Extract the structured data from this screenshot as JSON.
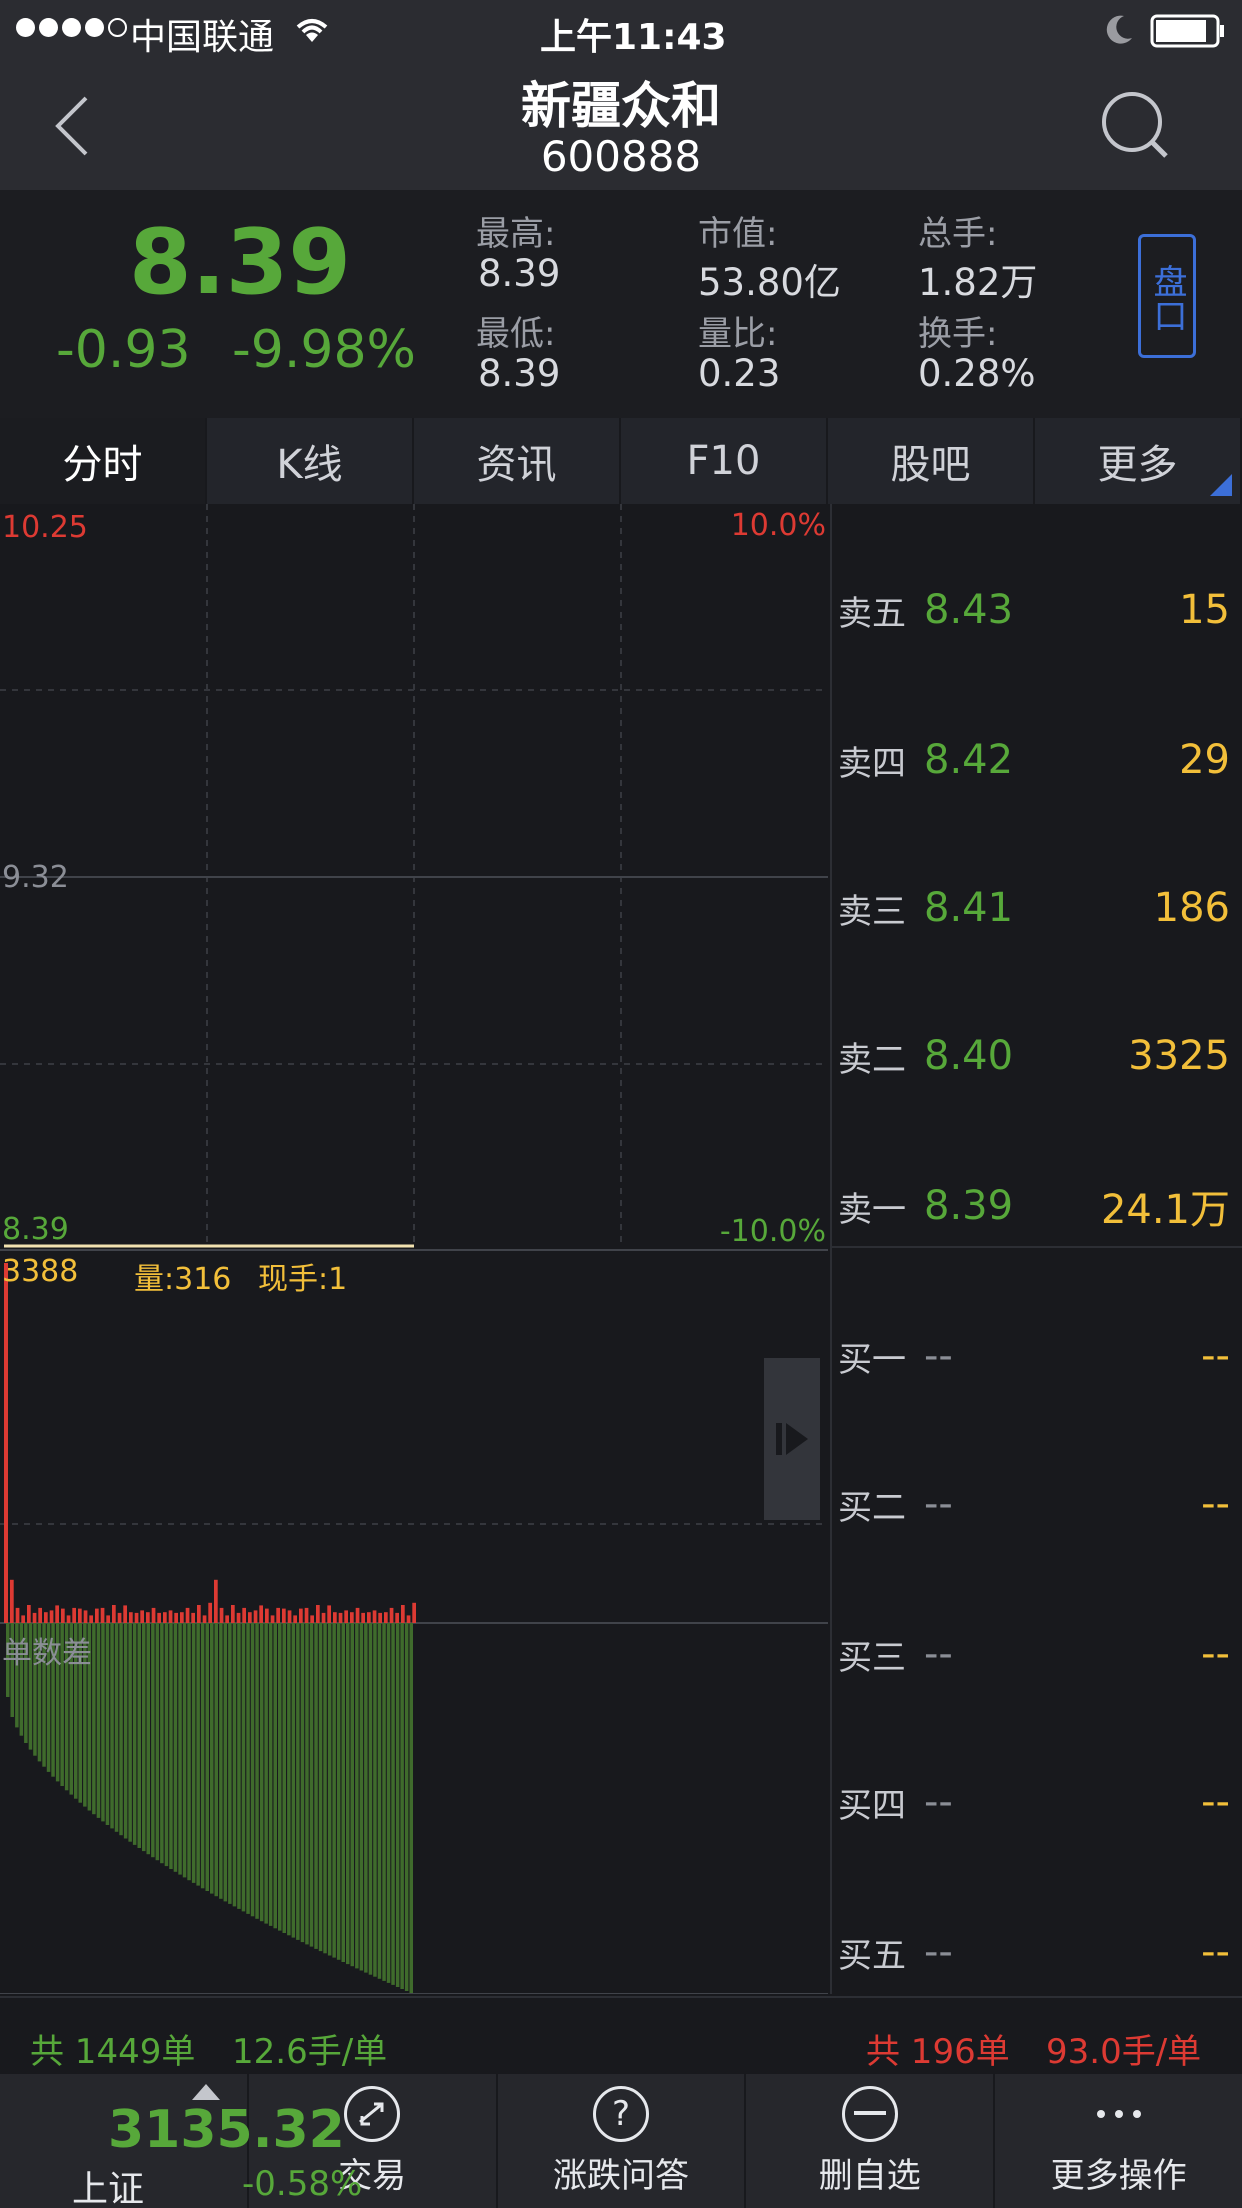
{
  "status_bar": {
    "carrier": "中国联通",
    "time": "上午11:43"
  },
  "nav": {
    "title": "新疆众和",
    "code": "600888"
  },
  "quote": {
    "price": "8.39",
    "change": "-0.93",
    "change_pct": "-9.98%",
    "stats": [
      {
        "label": "最高:",
        "value": "8.39"
      },
      {
        "label": "市值:",
        "value": "53.80亿"
      },
      {
        "label": "总手:",
        "value": "1.82万"
      },
      {
        "label": "最低:",
        "value": "8.39"
      },
      {
        "label": "量比:",
        "value": "0.23"
      },
      {
        "label": "换手:",
        "value": "0.28%"
      }
    ],
    "panel_button": "盘口"
  },
  "tabs": [
    {
      "label": "分时"
    },
    {
      "label": "K线"
    },
    {
      "label": "资讯"
    },
    {
      "label": "F10"
    },
    {
      "label": "股吧"
    },
    {
      "label": "更多"
    }
  ],
  "chart": {
    "price_high": "10.25",
    "price_mid": "9.32",
    "price_low": "8.39",
    "pct_high": "10.0%",
    "pct_low": "-10.0%",
    "volume_info": "3388",
    "volume_label": "量:316",
    "current_hand": "现手:1",
    "diff_label": "单数差"
  },
  "chart_data": {
    "type": "line",
    "price_axis": [
      8.39,
      9.32,
      10.25
    ],
    "price_line": [
      8.39,
      8.39,
      8.39,
      8.39,
      8.39
    ],
    "volume_spike_first": 1.0,
    "volume_bars_relative": [
      0.12,
      0.06,
      0.03,
      0.05,
      0.04,
      0.06,
      0.03,
      0.05,
      0.07,
      0.04,
      0.03,
      0.06,
      0.04,
      0.05,
      0.03,
      0.04,
      0.06,
      0.03,
      0.05,
      0.04,
      0.07,
      0.03,
      0.04,
      0.05,
      0.03,
      0.06,
      0.04,
      0.03,
      0.05,
      0.04,
      0.03,
      0.06,
      0.04,
      0.05,
      0.03,
      0.08
    ]
  },
  "order_book": {
    "sells": [
      {
        "label": "卖五",
        "price": "8.43",
        "volume": "15"
      },
      {
        "label": "卖四",
        "price": "8.42",
        "volume": "29"
      },
      {
        "label": "卖三",
        "price": "8.41",
        "volume": "186"
      },
      {
        "label": "卖二",
        "price": "8.40",
        "volume": "3325"
      },
      {
        "label": "卖一",
        "price": "8.39",
        "volume": "24.1万"
      }
    ],
    "buys": [
      {
        "label": "买一",
        "price": "--",
        "volume": "--"
      },
      {
        "label": "买二",
        "price": "--",
        "volume": "--"
      },
      {
        "label": "买三",
        "price": "--",
        "volume": "--"
      },
      {
        "label": "买四",
        "price": "--",
        "volume": "--"
      },
      {
        "label": "买五",
        "price": "--",
        "volume": "--"
      }
    ]
  },
  "summary": {
    "left_orders": "共 1449单",
    "left_avg": "12.6手/单",
    "right_orders": "共 196单",
    "right_avg": "93.0手/单"
  },
  "bottom_bar": {
    "index_value": "3135.32",
    "index_name": "上证",
    "index_change": "-0.58%",
    "actions": [
      {
        "label": "交易",
        "icon": "trade-icon"
      },
      {
        "label": "涨跌问答",
        "icon": "question-icon"
      },
      {
        "label": "删自选",
        "icon": "minus-circle-icon"
      },
      {
        "label": "更多操作",
        "icon": "more-icon"
      }
    ]
  },
  "colors": {
    "up": "#dd3a33",
    "down": "#57a83a",
    "volume": "#f2bf3a",
    "accent": "#3c6fd8"
  }
}
